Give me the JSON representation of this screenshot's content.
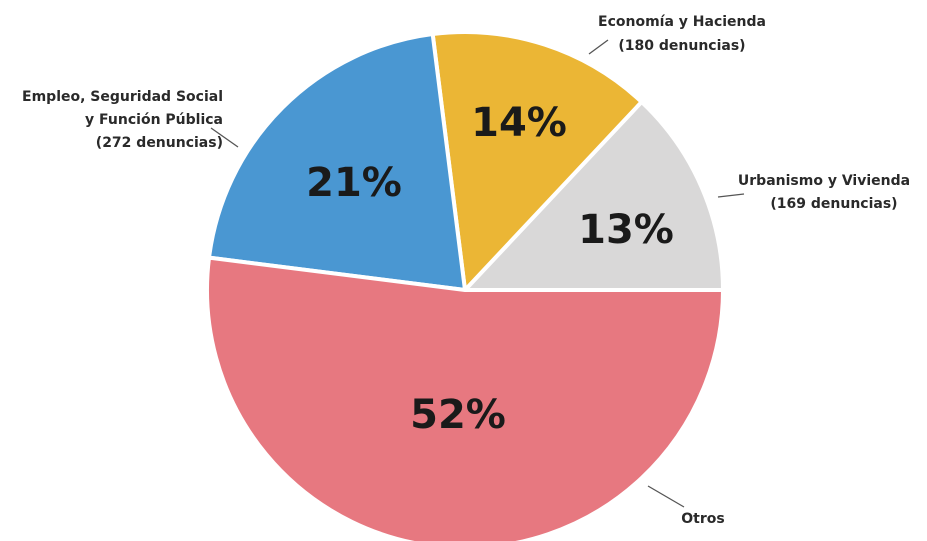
{
  "chart_data": {
    "type": "pie",
    "title": "",
    "slices": [
      {
        "name": "Urbanismo y Vivienda",
        "count_label": "(169 denuncias)",
        "value": 13,
        "pct_label": "13%",
        "color": "#d9d8d8"
      },
      {
        "name": "Economía y Hacienda",
        "count_label": "(180 denuncias)",
        "value": 14,
        "pct_label": "14%",
        "color": "#ebb635"
      },
      {
        "name_lines": [
          "Empleo, Seguridad Social",
          "y Función Pública"
        ],
        "count_label": "(272 denuncias)",
        "value": 21,
        "pct_label": "21%",
        "color": "#4a97d2"
      },
      {
        "name": "Otros",
        "value": 52,
        "pct_label": "52%",
        "color": "#e77880"
      }
    ]
  }
}
